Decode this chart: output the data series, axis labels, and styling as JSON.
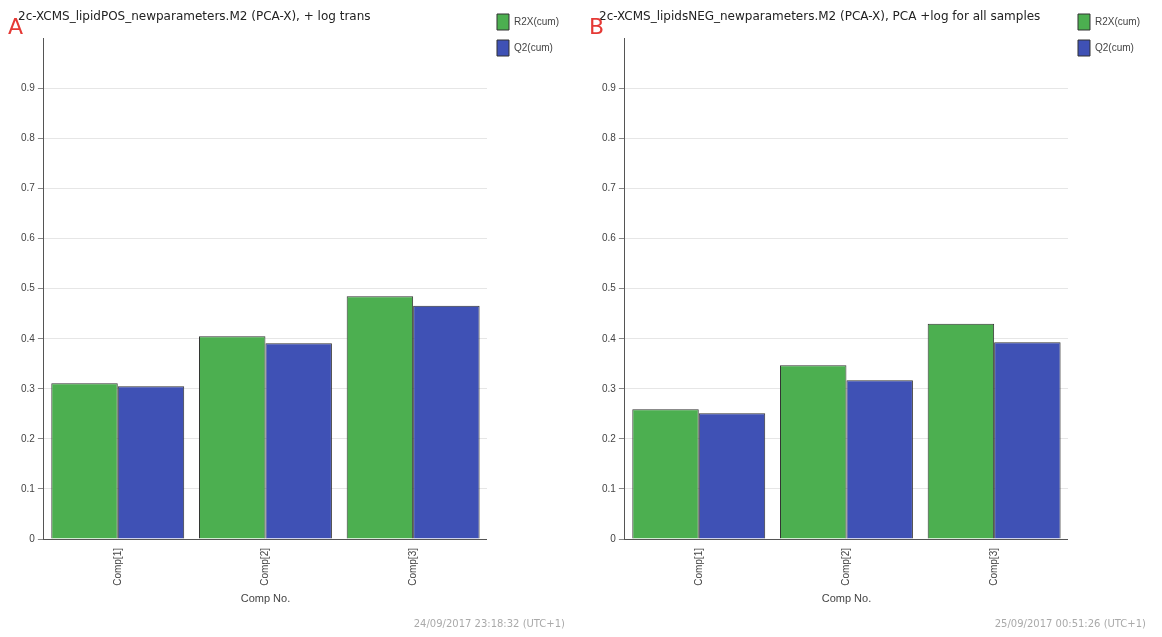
{
  "chart_data": [
    {
      "type": "bar",
      "title": "2c-XCMS_lipidPOS_newparameters.M2 (PCA-X), + log trans",
      "xlabel": "Comp No.",
      "categories": [
        "Comp[1]",
        "Comp[2]",
        "Comp[3]"
      ],
      "series": [
        {
          "name": "R2X(cum)",
          "color": "#4caf50",
          "values": [
            0.311,
            0.405,
            0.485
          ]
        },
        {
          "name": "Q2(cum)",
          "color": "#3f51b5",
          "values": [
            0.305,
            0.391,
            0.466
          ]
        }
      ],
      "ylim": [
        0,
        1
      ],
      "yticks": [
        0,
        0.1,
        0.2,
        0.3,
        0.4,
        0.5,
        0.6,
        0.7,
        0.8,
        0.9
      ],
      "grid": "y",
      "legend": "top right",
      "annotations": [
        "A",
        "24/09/2017 23:18:32 (UTC+1)"
      ]
    },
    {
      "type": "bar",
      "title": "2c-XCMS_lipidsNEG_newparameters.M2 (PCA-X), PCA +log for all samples",
      "xlabel": "Comp No.",
      "categories": [
        "Comp[1]",
        "Comp[2]",
        "Comp[3]"
      ],
      "series": [
        {
          "name": "R2X(cum)",
          "color": "#4caf50",
          "values": [
            0.259,
            0.347,
            0.43
          ]
        },
        {
          "name": "Q2(cum)",
          "color": "#3f51b5",
          "values": [
            0.251,
            0.317,
            0.393
          ]
        }
      ],
      "ylim": [
        0,
        1
      ],
      "yticks": [
        0,
        0.1,
        0.2,
        0.3,
        0.4,
        0.5,
        0.6,
        0.7,
        0.8,
        0.9
      ],
      "grid": "y",
      "legend": "top right",
      "annotations": [
        "B",
        "25/09/2017 00:51:26 (UTC+1)"
      ]
    }
  ]
}
